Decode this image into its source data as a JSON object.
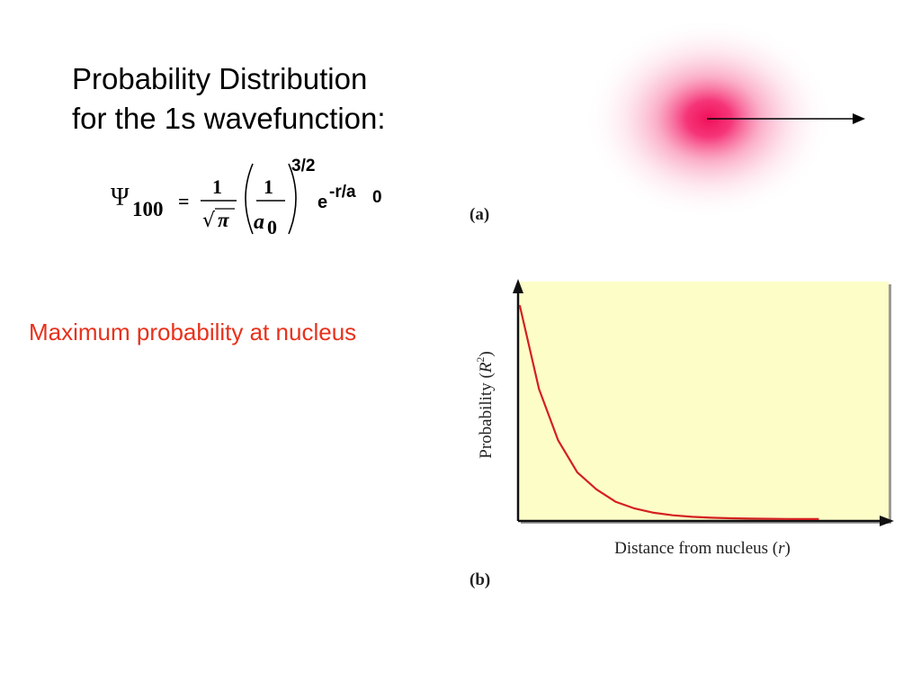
{
  "title": {
    "line1": "Probability Distribution",
    "line2": "for the 1s wavefunction:"
  },
  "equation": {
    "psi_symbol": "Ψ",
    "psi_subscript": "100",
    "equals": "=",
    "frac1_numerator": "1",
    "sqrt_symbol": "√",
    "pi_symbol": "π",
    "frac2_numerator": "1",
    "a_symbol": "a",
    "a_subscript": "0",
    "exponent": "3/2",
    "exp_base": "e",
    "exp_power": "-r/a",
    "exp_power_subscript": "0"
  },
  "annotation": "Maximum probability at nucleus",
  "panel_a_label": "(a)",
  "panel_b_label": "(b)",
  "colors": {
    "annotation": "#e8311b",
    "curve": "#d42020",
    "plot_background": "#fdfdc8",
    "cloud_center": "#f0105a"
  },
  "chart_data": {
    "type": "line",
    "xlabel": "Distance from nucleus (r)",
    "ylabel": "Probability (R²)",
    "xlabel_parts": {
      "text": "Distance from nucleus (",
      "var": "r",
      "close": ")"
    },
    "ylabel_parts": {
      "text": "Probability (",
      "var": "R",
      "sup": "2",
      "close": ")"
    },
    "xlim": [
      0,
      4
    ],
    "ylim": [
      0,
      1
    ],
    "grid": false,
    "series": [
      {
        "x": [
          0,
          0.25,
          0.5,
          0.75,
          1.0,
          1.25,
          1.5,
          1.75,
          2.0,
          2.25,
          2.5,
          2.75,
          3.0,
          3.25,
          3.5,
          3.75,
          3.9
        ],
        "values": [
          1.0,
          0.61,
          0.37,
          0.22,
          0.14,
          0.082,
          0.05,
          0.03,
          0.018,
          0.011,
          0.0067,
          0.0041,
          0.0025,
          0.0015,
          0.0009,
          0.0006,
          0.0004
        ]
      }
    ]
  }
}
